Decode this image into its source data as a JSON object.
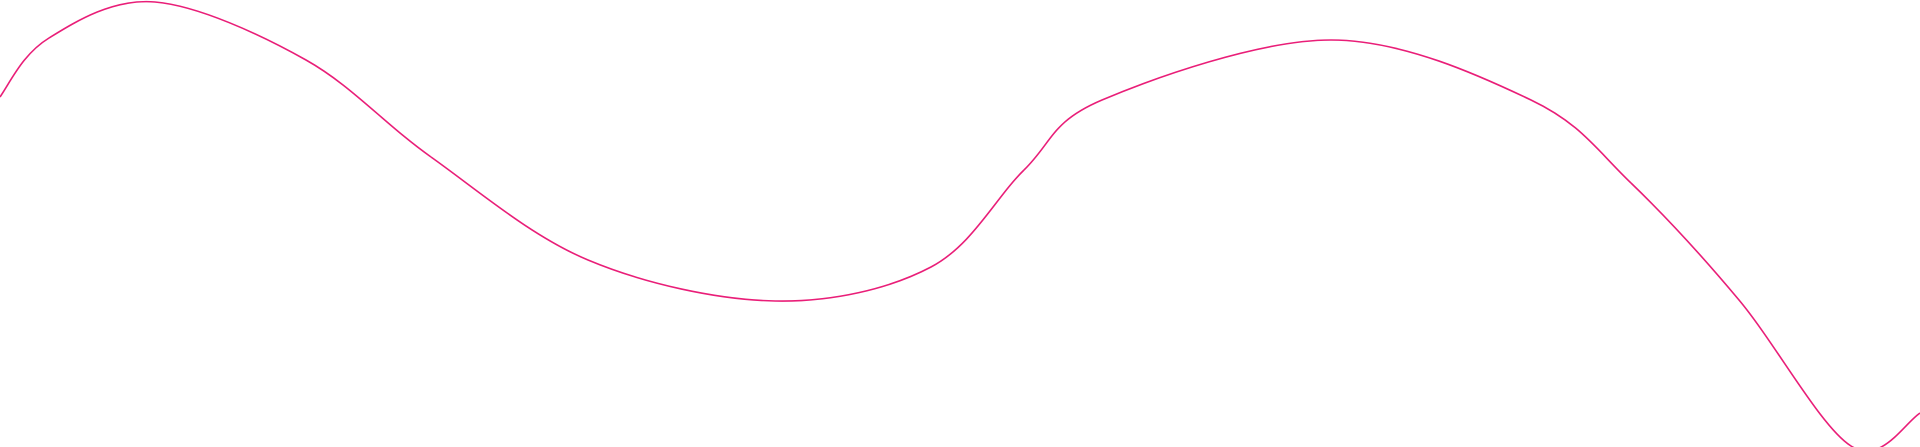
{
  "decoration": {
    "type": "wavy-line",
    "stroke_color": "#e91e78",
    "background_color": "#ffffff"
  }
}
